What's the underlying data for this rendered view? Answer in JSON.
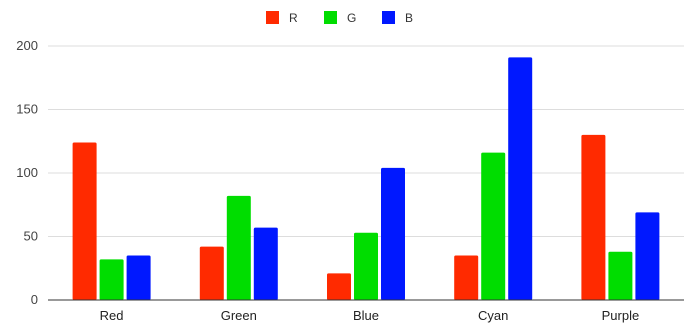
{
  "chart_data": {
    "type": "bar",
    "title": "",
    "xlabel": "",
    "ylabel": "",
    "categories": [
      "Red",
      "Green",
      "Blue",
      "Cyan",
      "Purple"
    ],
    "series": [
      {
        "name": "R",
        "color": "#ff2a00",
        "values": [
          124,
          42,
          21,
          35,
          130
        ]
      },
      {
        "name": "G",
        "color": "#00dd00",
        "values": [
          32,
          82,
          53,
          116,
          38
        ]
      },
      {
        "name": "B",
        "color": "#0018ff",
        "values": [
          35,
          57,
          104,
          191,
          69
        ]
      }
    ],
    "ylim": [
      0,
      200
    ],
    "yticks": [
      0,
      50,
      100,
      150,
      200
    ],
    "grid": true,
    "legend_position": "top"
  }
}
